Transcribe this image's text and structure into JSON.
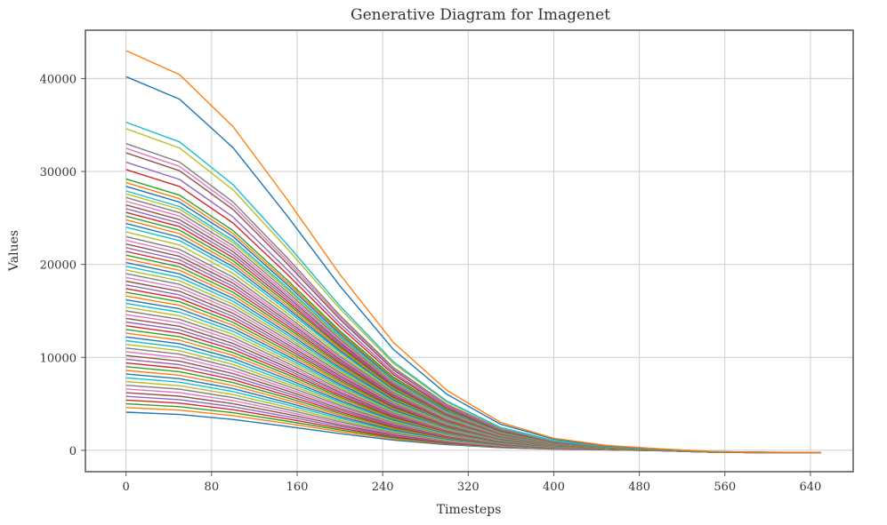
{
  "chart_data": {
    "type": "line",
    "title": "Generative Diagram for Imagenet",
    "xlabel": "Timesteps",
    "ylabel": "Values",
    "xlim": [
      -38,
      680
    ],
    "ylim": [
      -2300,
      45200
    ],
    "xticks": [
      0,
      80,
      160,
      240,
      320,
      400,
      480,
      560,
      640
    ],
    "yticks": [
      0,
      10000,
      20000,
      30000,
      40000
    ],
    "x": [
      0,
      50,
      100,
      150,
      200,
      250,
      300,
      350,
      400,
      450,
      500,
      550,
      600,
      650
    ],
    "decay_profile": [
      1.0,
      0.94,
      0.81,
      0.63,
      0.44,
      0.27,
      0.15,
      0.07,
      0.03,
      0.012,
      0.005,
      0.002,
      0.001,
      0.0008
    ],
    "initial_values": [
      43000,
      40200,
      35300,
      34600,
      33000,
      32500,
      32000,
      31000,
      30200,
      29200,
      28800,
      28400,
      27900,
      27600,
      27200,
      26800,
      26400,
      26000,
      25600,
      25200,
      24800,
      24400,
      24000,
      23500,
      23000,
      22600,
      22200,
      21800,
      21400,
      21000,
      20600,
      20200,
      19800,
      19400,
      19000,
      18600,
      18200,
      17800,
      17400,
      17000,
      16600,
      16200,
      15800,
      15400,
      15000,
      14600,
      14200,
      13800,
      13400,
      13000,
      12600,
      12200,
      11800,
      11400,
      11000,
      10600,
      10200,
      9800,
      9400,
      9000,
      8600,
      8200,
      7800,
      7400,
      7000,
      6600,
      6200,
      5800,
      5400,
      5000,
      4600,
      4100
    ],
    "grid": true,
    "colors": [
      "#1f77b4",
      "#ff7f0e",
      "#2ca02c",
      "#d62728",
      "#9467bd",
      "#8c564b",
      "#e377c2",
      "#7f7f7f",
      "#bcbd22",
      "#17becf"
    ]
  }
}
